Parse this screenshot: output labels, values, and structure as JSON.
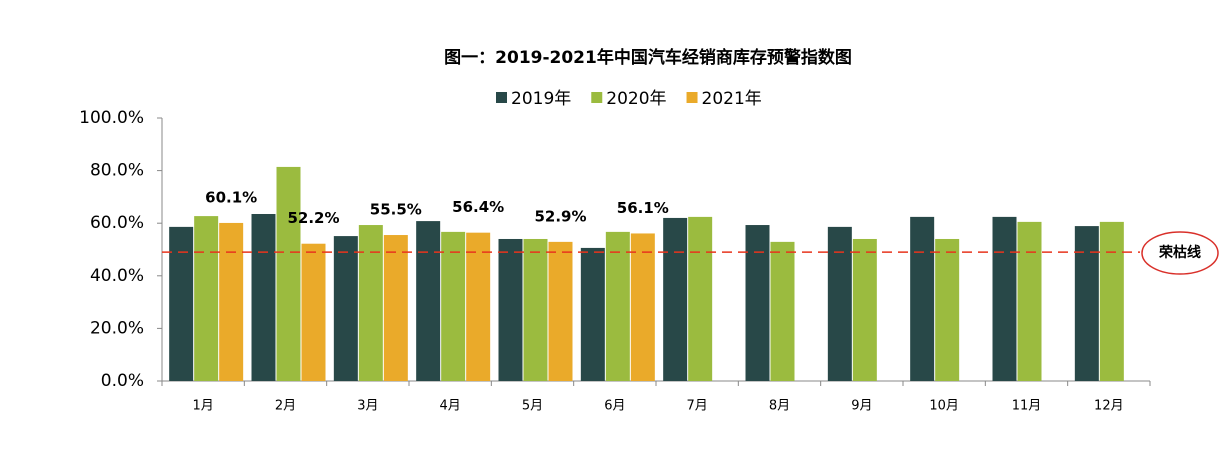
{
  "chart_data": {
    "type": "bar",
    "title": "图一：2019-2021年中国汽车经销商库存预警指数图",
    "categories": [
      "1月",
      "2月",
      "3月",
      "4月",
      "5月",
      "6月",
      "7月",
      "8月",
      "9月",
      "10月",
      "11月",
      "12月"
    ],
    "series": [
      {
        "name": "2019年",
        "color": "#284848",
        "values": [
          58.6,
          63.5,
          55.1,
          60.8,
          54.0,
          50.6,
          62.0,
          59.3,
          58.6,
          62.4,
          62.4,
          58.9
        ]
      },
      {
        "name": "2020年",
        "color": "#9bbb3f",
        "values": [
          62.7,
          81.4,
          59.3,
          56.7,
          54.0,
          56.7,
          62.4,
          52.9,
          54.0,
          54.0,
          60.5,
          60.5
        ]
      },
      {
        "name": "2021年",
        "color": "#eaaa2a",
        "values": [
          60.1,
          52.2,
          55.5,
          56.4,
          52.9,
          56.1,
          null,
          null,
          null,
          null,
          null,
          null
        ],
        "value_labels": [
          "60.1%",
          "52.2%",
          "55.5%",
          "56.4%",
          "52.9%",
          "56.1%",
          null,
          null,
          null,
          null,
          null,
          null
        ]
      }
    ],
    "ylim": [
      0,
      100
    ],
    "yticks": [
      {
        "value": 0,
        "label": "0.0%"
      },
      {
        "value": 20,
        "label": "20.0%"
      },
      {
        "value": 40,
        "label": "40.0%"
      },
      {
        "value": 60,
        "label": "60.0%"
      },
      {
        "value": 80,
        "label": "80.0%"
      },
      {
        "value": 100,
        "label": "100.0%"
      }
    ],
    "reference_line": {
      "value": 49,
      "label": "荣枯线",
      "color": "#e8341c"
    },
    "legend": "top"
  }
}
